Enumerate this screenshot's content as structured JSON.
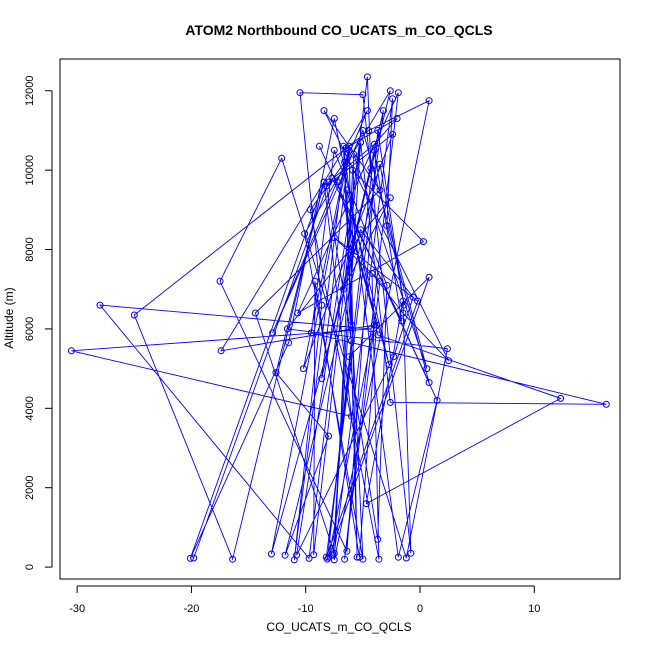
{
  "chart_data": {
    "type": "line",
    "title": "ATOM2 Northbound CO_UCATS_m_CO_QCLS",
    "xlabel": "CO_UCATS_m_CO_QCLS",
    "ylabel": "Altitude (m)",
    "xlim": [
      -31.5,
      17.5
    ],
    "ylim": [
      -300,
      12800
    ],
    "xticks": [
      -30,
      -20,
      -10,
      0,
      10
    ],
    "yticks": [
      0,
      2000,
      4000,
      6000,
      8000,
      10000,
      12000
    ],
    "grid": false,
    "legend": "none",
    "marker": "open-circle",
    "colors": {
      "series": "#0000ff",
      "text": "#000000",
      "frame": "#000000"
    },
    "series": [
      {
        "points": [
          [
            -19.8,
            230
          ],
          [
            -8.0,
            9700
          ],
          [
            -4.0,
            10650
          ],
          [
            -2.0,
            11300
          ],
          [
            -6.5,
            10550
          ],
          [
            -11.0,
            180
          ],
          [
            -8.6,
            6600
          ],
          [
            -10.5,
            11950
          ],
          [
            -5.0,
            11900
          ],
          [
            -0.8,
            350
          ],
          [
            -1.5,
            6700
          ],
          [
            -4.7,
            1600
          ],
          [
            12.3,
            4250
          ],
          [
            -3.7,
            5850
          ],
          [
            -7.5,
            11300
          ],
          [
            -11.5,
            5650
          ],
          [
            -20.1,
            220
          ],
          [
            -8.4,
            9700
          ],
          [
            -6.0,
            3800
          ],
          [
            -30.5,
            5450
          ],
          [
            -4.3,
            6000
          ],
          [
            -28.0,
            6600
          ],
          [
            -9.7,
            220
          ],
          [
            -4.6,
            12350
          ],
          [
            -4.3,
            10050
          ],
          [
            -6.7,
            7000
          ],
          [
            -2.6,
            9300
          ],
          [
            -11.6,
            6000
          ],
          [
            2.4,
            5500
          ],
          [
            -1.2,
            230
          ],
          [
            -12.1,
            10300
          ],
          [
            -17.5,
            7200
          ],
          [
            -6.4,
            400
          ],
          [
            -3.7,
            11000
          ],
          [
            -1.4,
            6600
          ],
          [
            -3.5,
            10150
          ],
          [
            -11.8,
            300
          ],
          [
            -8.0,
            3300
          ],
          [
            -12.6,
            4900
          ],
          [
            -8.4,
            9700
          ],
          [
            -16.4,
            200
          ],
          [
            -25.0,
            6350
          ],
          [
            -4.5,
            11000
          ],
          [
            0.8,
            11750
          ],
          [
            -7.5,
            180
          ],
          [
            -5.9,
            10000
          ],
          [
            0.3,
            8200
          ],
          [
            -10.7,
            6400
          ],
          [
            -1.9,
            11950
          ],
          [
            -6.6,
            200
          ],
          [
            -3.5,
            7200
          ],
          [
            -7.5,
            8300
          ],
          [
            -0.2,
            6700
          ],
          [
            -8.2,
            250
          ],
          [
            -3.2,
            11500
          ],
          [
            -8.6,
            4750
          ],
          [
            -6.2,
            10500
          ],
          [
            -13.0,
            330
          ],
          [
            -5.2,
            8500
          ],
          [
            -0.6,
            6800
          ],
          [
            -2.3,
            5300
          ],
          [
            -10.8,
            300
          ],
          [
            -5.2,
            10700
          ],
          [
            -2.6,
            4150
          ],
          [
            16.3,
            4100
          ],
          [
            -9.5,
            5900
          ],
          [
            -7.5,
            10500
          ],
          [
            -2.9,
            7100
          ],
          [
            -3.7,
            700
          ],
          [
            -6.2,
            5300
          ],
          [
            0.8,
            7300
          ],
          [
            -8.0,
            250
          ],
          [
            -4.0,
            6100
          ],
          [
            -17.4,
            5450
          ],
          [
            -4.6,
            11500
          ],
          [
            -12.9,
            5900
          ],
          [
            -5.0,
            11000
          ],
          [
            0.6,
            5000
          ],
          [
            -5.8,
            10400
          ],
          [
            -6.0,
            6100
          ],
          [
            -6.7,
            10600
          ],
          [
            -1.9,
            250
          ],
          [
            1.5,
            4200
          ],
          [
            -8.8,
            10600
          ],
          [
            0.8,
            4650
          ],
          [
            -2.9,
            8600
          ],
          [
            -2.4,
            11800
          ],
          [
            -7.5,
            350
          ],
          [
            -14.4,
            6400
          ],
          [
            -3.5,
            9500
          ],
          [
            -8.4,
            11500
          ],
          [
            2.5,
            5200
          ],
          [
            -1.5,
            6400
          ],
          [
            -4.2,
            7400
          ],
          [
            -3.6,
            200
          ],
          [
            -9.6,
            9000
          ],
          [
            -6.6,
            10200
          ],
          [
            -5.0,
            200
          ],
          [
            -10.1,
            8400
          ],
          [
            -2.6,
            12000
          ],
          [
            -6.0,
            8000
          ],
          [
            -7.6,
            300
          ],
          [
            -5.2,
            10700
          ],
          [
            -9.3,
            310
          ],
          [
            -9.2,
            7200
          ],
          [
            -5.3,
            250
          ],
          [
            -3.8,
            6100
          ],
          [
            -7.2,
            9700
          ],
          [
            -2.7,
            5100
          ],
          [
            -6.4,
            9500
          ],
          [
            -5.5,
            250
          ],
          [
            -6.2,
            10600
          ],
          [
            -10.2,
            5000
          ],
          [
            -2.4,
            10900
          ],
          [
            -8.2,
            9600
          ],
          [
            -6.0,
            5700
          ],
          [
            -8.1,
            200
          ],
          [
            -4.0,
            10500
          ],
          [
            -1.6,
            6200
          ],
          [
            -7.7,
            9800
          ]
        ]
      }
    ]
  }
}
